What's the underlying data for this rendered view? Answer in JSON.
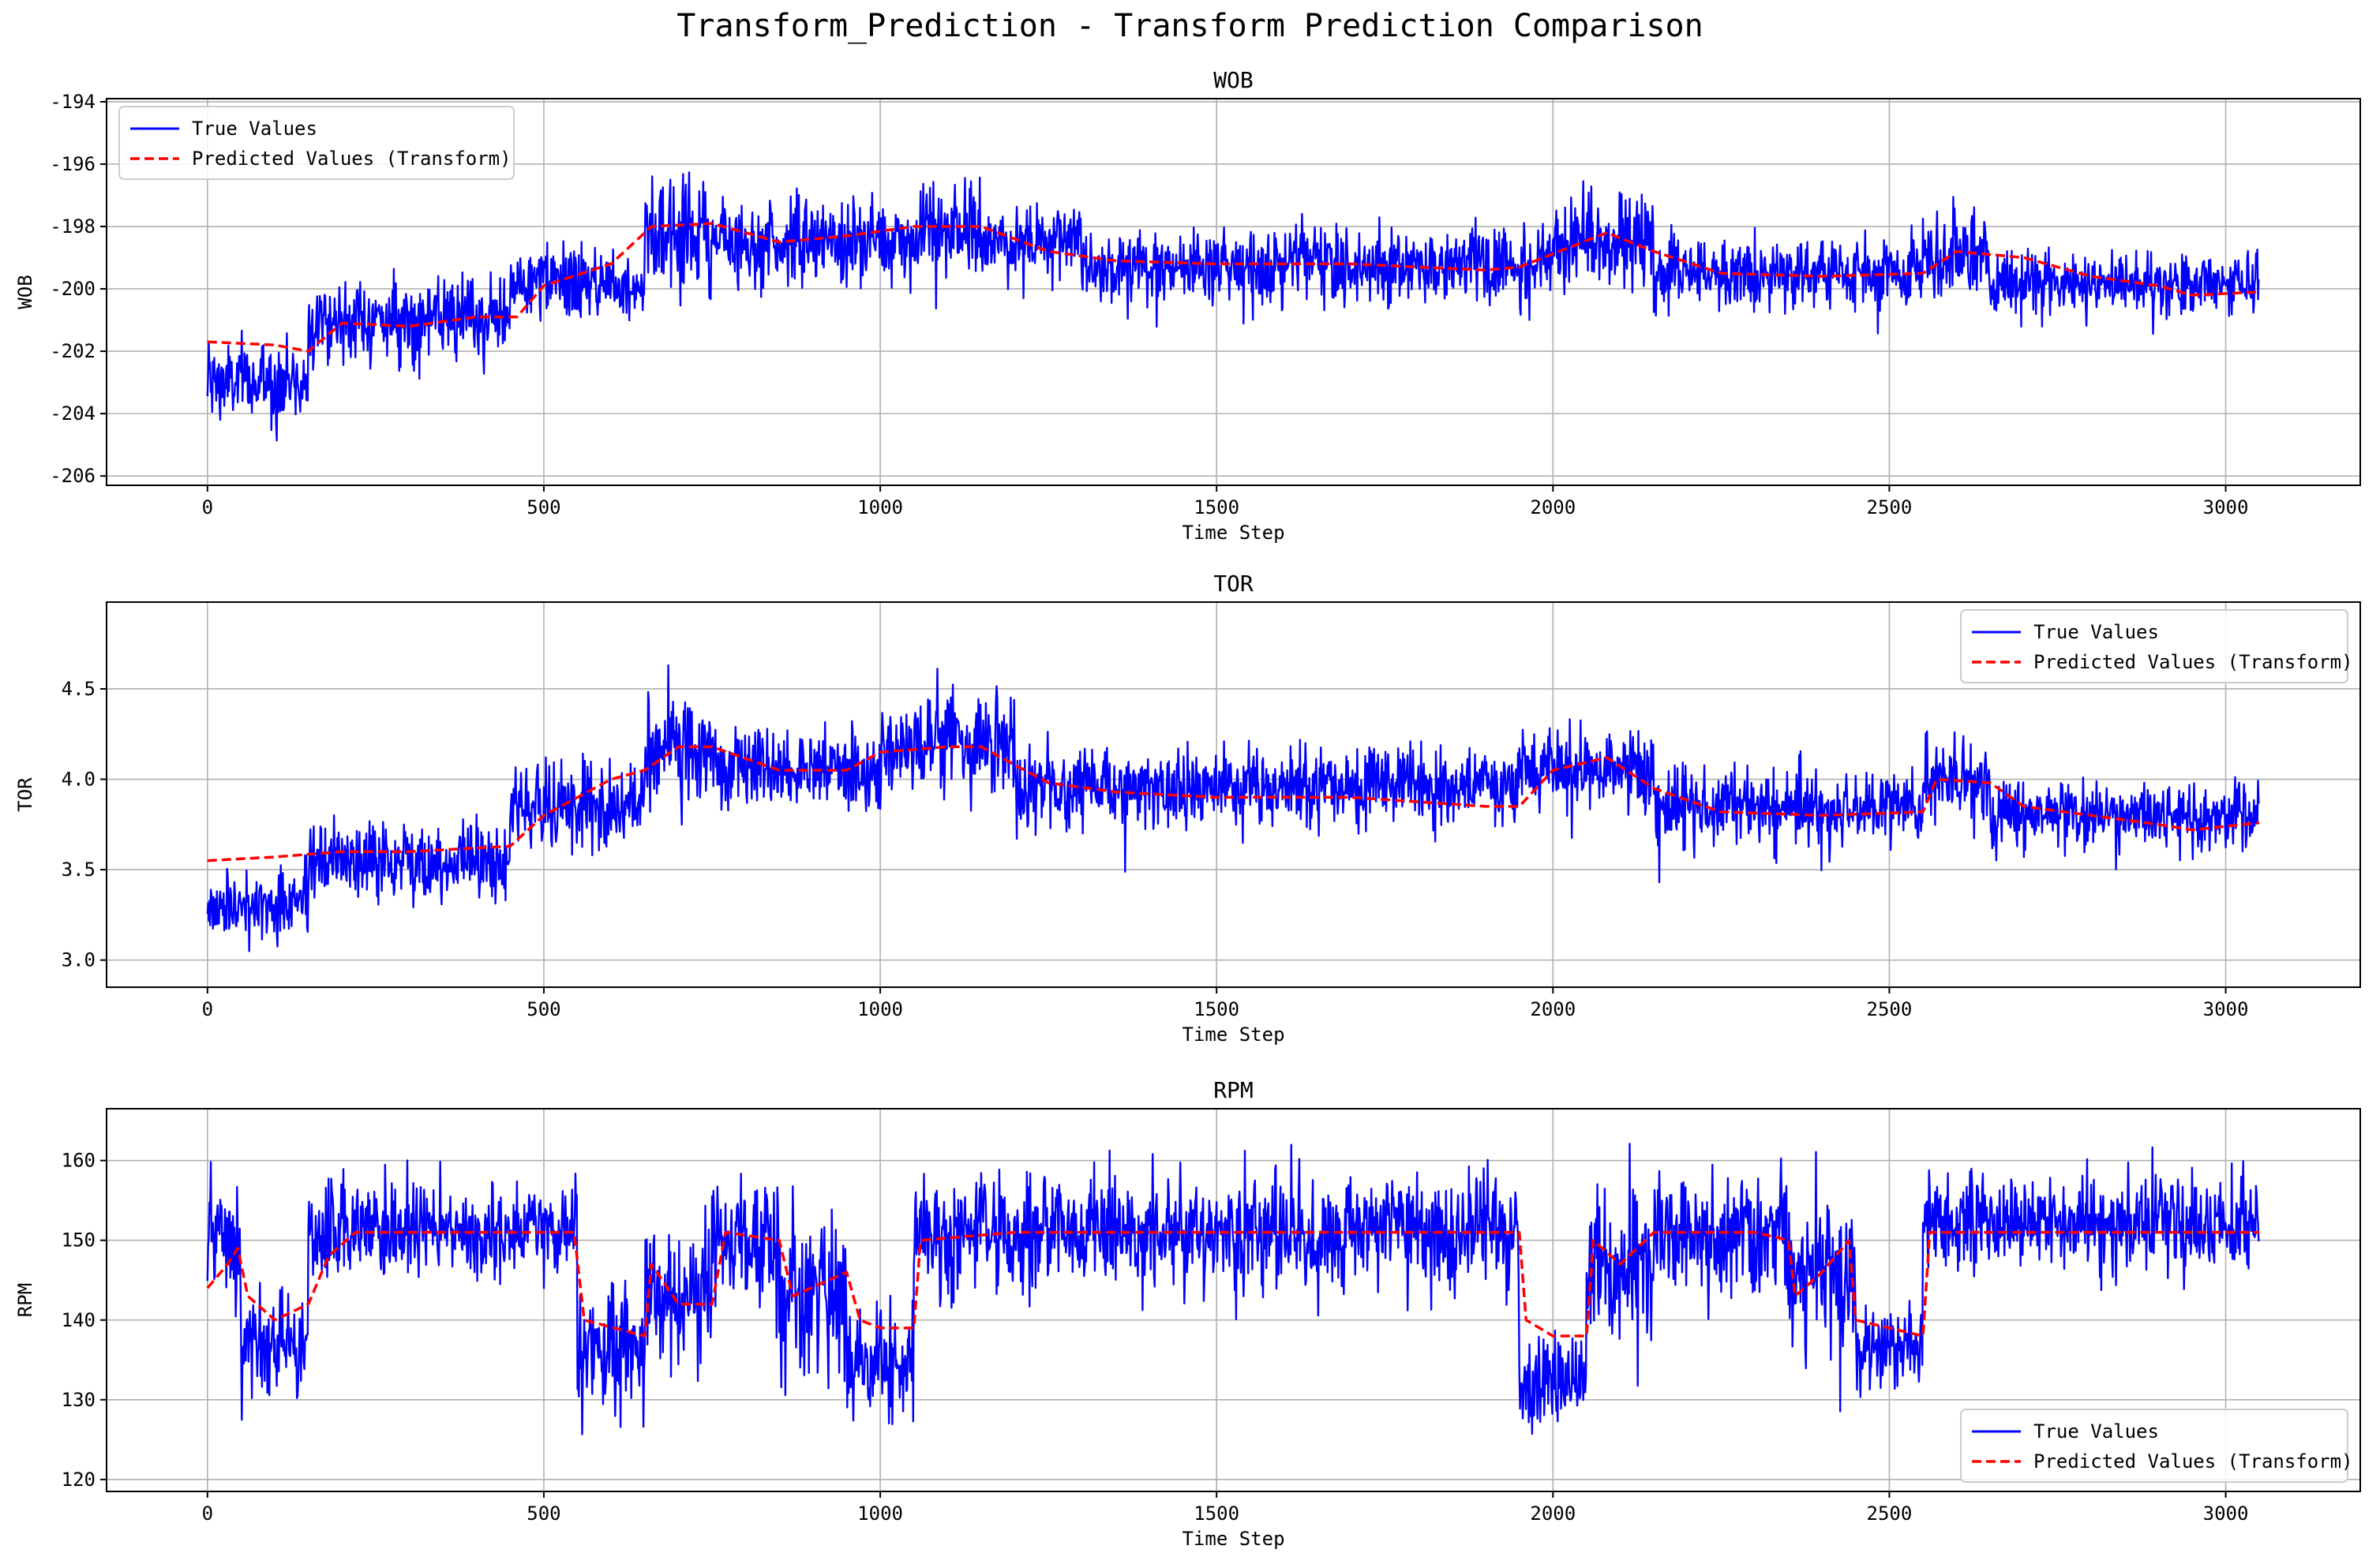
{
  "figure": {
    "suptitle": "Transform_Prediction - Transform Prediction Comparison"
  },
  "colors": {
    "true": "#0000ff",
    "pred": "#ff0000",
    "grid": "#b0b0b0"
  },
  "chart_data": [
    {
      "type": "line",
      "title": "WOB",
      "xlabel": "Time Step",
      "ylabel": "WOB",
      "xlim": [
        -150,
        3200
      ],
      "ylim": [
        -206.3,
        -193.9
      ],
      "xticks": [
        0,
        500,
        1000,
        1500,
        2000,
        2500,
        3000
      ],
      "yticks": [
        -206,
        -204,
        -202,
        -200,
        -198,
        -196,
        -194
      ],
      "legend": "top-left",
      "grid": true,
      "n_points": 3050,
      "series": [
        {
          "name": "True Values",
          "style": "solid",
          "color": "#0000ff",
          "segments": [
            {
              "start": 0,
              "mean": -203.0,
              "noise": 0.9
            },
            {
              "start": 150,
              "mean": -201.0,
              "noise": 0.8
            },
            {
              "start": 450,
              "mean": -199.8,
              "noise": 0.8
            },
            {
              "start": 650,
              "mean": -198.2,
              "noise": 1.2
            },
            {
              "start": 750,
              "mean": -198.5,
              "noise": 0.9
            },
            {
              "start": 1050,
              "mean": -198.2,
              "noise": 1.1
            },
            {
              "start": 1150,
              "mean": -198.5,
              "noise": 0.8
            },
            {
              "start": 1300,
              "mean": -199.2,
              "noise": 0.8
            },
            {
              "start": 2000,
              "mean": -198.5,
              "noise": 1.0
            },
            {
              "start": 2150,
              "mean": -199.5,
              "noise": 0.8
            },
            {
              "start": 2550,
              "mean": -198.8,
              "noise": 1.0
            },
            {
              "start": 2650,
              "mean": -199.8,
              "noise": 0.7
            }
          ]
        },
        {
          "name": "Predicted Values (Transform)",
          "style": "dashed",
          "color": "#ff0000",
          "points": [
            [
              0,
              -201.7
            ],
            [
              100,
              -201.8
            ],
            [
              150,
              -202.0
            ],
            [
              200,
              -201.1
            ],
            [
              300,
              -201.2
            ],
            [
              400,
              -200.9
            ],
            [
              460,
              -200.9
            ],
            [
              500,
              -199.9
            ],
            [
              600,
              -199.2
            ],
            [
              660,
              -198.0
            ],
            [
              750,
              -197.9
            ],
            [
              850,
              -198.5
            ],
            [
              950,
              -198.3
            ],
            [
              1050,
              -198.0
            ],
            [
              1150,
              -198.0
            ],
            [
              1250,
              -198.8
            ],
            [
              1350,
              -199.1
            ],
            [
              1500,
              -199.2
            ],
            [
              1700,
              -199.2
            ],
            [
              1900,
              -199.4
            ],
            [
              1950,
              -199.3
            ],
            [
              2080,
              -198.2
            ],
            [
              2150,
              -198.8
            ],
            [
              2250,
              -199.5
            ],
            [
              2400,
              -199.6
            ],
            [
              2550,
              -199.5
            ],
            [
              2600,
              -198.8
            ],
            [
              2700,
              -199.0
            ],
            [
              2800,
              -199.6
            ],
            [
              2900,
              -199.9
            ],
            [
              2950,
              -200.2
            ],
            [
              3050,
              -200.1
            ]
          ]
        }
      ]
    },
    {
      "type": "line",
      "title": "TOR",
      "xlabel": "Time Step",
      "ylabel": "TOR",
      "xlim": [
        -150,
        3200
      ],
      "ylim": [
        2.85,
        4.98
      ],
      "xticks": [
        0,
        500,
        1000,
        1500,
        2000,
        2500,
        3000
      ],
      "yticks": [
        3.0,
        3.5,
        4.0,
        4.5
      ],
      "ytick_labels": [
        "3.0",
        "3.5",
        "4.0",
        "4.5"
      ],
      "legend": "top-right",
      "grid": true,
      "n_points": 3050,
      "series": [
        {
          "name": "True Values",
          "style": "solid",
          "color": "#0000ff",
          "segments": [
            {
              "start": 0,
              "mean": 3.3,
              "noise": 0.14
            },
            {
              "start": 150,
              "mean": 3.55,
              "noise": 0.14
            },
            {
              "start": 450,
              "mean": 3.85,
              "noise": 0.16
            },
            {
              "start": 650,
              "mean": 4.15,
              "noise": 0.2
            },
            {
              "start": 750,
              "mean": 4.05,
              "noise": 0.15
            },
            {
              "start": 1000,
              "mean": 4.2,
              "noise": 0.17
            },
            {
              "start": 1200,
              "mean": 3.95,
              "noise": 0.14
            },
            {
              "start": 1950,
              "mean": 4.05,
              "noise": 0.15
            },
            {
              "start": 2150,
              "mean": 3.85,
              "noise": 0.14
            },
            {
              "start": 2550,
              "mean": 4.0,
              "noise": 0.14
            },
            {
              "start": 2650,
              "mean": 3.8,
              "noise": 0.13
            }
          ]
        },
        {
          "name": "Predicted Values (Transform)",
          "style": "dashed",
          "color": "#ff0000",
          "points": [
            [
              0,
              3.55
            ],
            [
              100,
              3.57
            ],
            [
              200,
              3.6
            ],
            [
              300,
              3.6
            ],
            [
              450,
              3.63
            ],
            [
              500,
              3.8
            ],
            [
              600,
              4.0
            ],
            [
              650,
              4.05
            ],
            [
              700,
              4.18
            ],
            [
              750,
              4.18
            ],
            [
              850,
              4.05
            ],
            [
              950,
              4.05
            ],
            [
              1000,
              4.15
            ],
            [
              1100,
              4.18
            ],
            [
              1150,
              4.18
            ],
            [
              1250,
              3.98
            ],
            [
              1350,
              3.93
            ],
            [
              1500,
              3.9
            ],
            [
              1700,
              3.9
            ],
            [
              1900,
              3.85
            ],
            [
              1950,
              3.85
            ],
            [
              2000,
              4.05
            ],
            [
              2080,
              4.12
            ],
            [
              2150,
              3.95
            ],
            [
              2250,
              3.82
            ],
            [
              2400,
              3.8
            ],
            [
              2550,
              3.82
            ],
            [
              2570,
              4.0
            ],
            [
              2650,
              3.98
            ],
            [
              2700,
              3.85
            ],
            [
              2800,
              3.8
            ],
            [
              2900,
              3.75
            ],
            [
              2950,
              3.72
            ],
            [
              3050,
              3.76
            ]
          ]
        }
      ]
    },
    {
      "type": "line",
      "title": "RPM",
      "xlabel": "Time Step",
      "ylabel": "RPM",
      "xlim": [
        -150,
        3200
      ],
      "ylim": [
        118.5,
        166.5
      ],
      "xticks": [
        0,
        500,
        1000,
        1500,
        2000,
        2500,
        3000
      ],
      "yticks": [
        120,
        130,
        140,
        150,
        160
      ],
      "legend": "bottom-right",
      "grid": true,
      "n_points": 3050,
      "series": [
        {
          "name": "True Values",
          "style": "solid",
          "color": "#0000ff",
          "segments": [
            {
              "start": 0,
              "mean": 150,
              "noise": 5
            },
            {
              "start": 50,
              "mean": 136,
              "noise": 4
            },
            {
              "start": 150,
              "mean": 151,
              "noise": 4
            },
            {
              "start": 550,
              "mean": 136,
              "noise": 6
            },
            {
              "start": 650,
              "mean": 143,
              "noise": 7
            },
            {
              "start": 750,
              "mean": 150,
              "noise": 5
            },
            {
              "start": 850,
              "mean": 143,
              "noise": 7
            },
            {
              "start": 950,
              "mean": 135,
              "noise": 5
            },
            {
              "start": 1050,
              "mean": 151,
              "noise": 5
            },
            {
              "start": 1950,
              "mean": 132,
              "noise": 4
            },
            {
              "start": 2050,
              "mean": 147,
              "noise": 6
            },
            {
              "start": 2150,
              "mean": 151,
              "noise": 5
            },
            {
              "start": 2350,
              "mean": 146,
              "noise": 7
            },
            {
              "start": 2450,
              "mean": 136,
              "noise": 4
            },
            {
              "start": 2550,
              "mean": 152,
              "noise": 4
            }
          ]
        },
        {
          "name": "Predicted Values (Transform)",
          "style": "dashed",
          "color": "#ff0000",
          "points": [
            [
              0,
              144
            ],
            [
              30,
              147
            ],
            [
              45,
              149
            ],
            [
              60,
              143
            ],
            [
              100,
              140
            ],
            [
              150,
              142
            ],
            [
              180,
              148
            ],
            [
              220,
              151
            ],
            [
              400,
              151
            ],
            [
              545,
              151
            ],
            [
              560,
              140
            ],
            [
              650,
              138
            ],
            [
              660,
              147
            ],
            [
              700,
              142
            ],
            [
              750,
              142
            ],
            [
              770,
              151
            ],
            [
              850,
              150
            ],
            [
              870,
              143
            ],
            [
              950,
              146
            ],
            [
              970,
              140
            ],
            [
              1000,
              139
            ],
            [
              1050,
              139
            ],
            [
              1060,
              150
            ],
            [
              1200,
              151
            ],
            [
              1500,
              151
            ],
            [
              1800,
              151
            ],
            [
              1950,
              151
            ],
            [
              1960,
              140
            ],
            [
              2000,
              138
            ],
            [
              2050,
              138
            ],
            [
              2060,
              150
            ],
            [
              2100,
              147
            ],
            [
              2150,
              151
            ],
            [
              2300,
              151
            ],
            [
              2350,
              150
            ],
            [
              2360,
              143
            ],
            [
              2400,
              146
            ],
            [
              2440,
              150
            ],
            [
              2450,
              140
            ],
            [
              2550,
              138
            ],
            [
              2560,
              151
            ],
            [
              2800,
              151
            ],
            [
              3050,
              151
            ]
          ]
        }
      ]
    }
  ]
}
